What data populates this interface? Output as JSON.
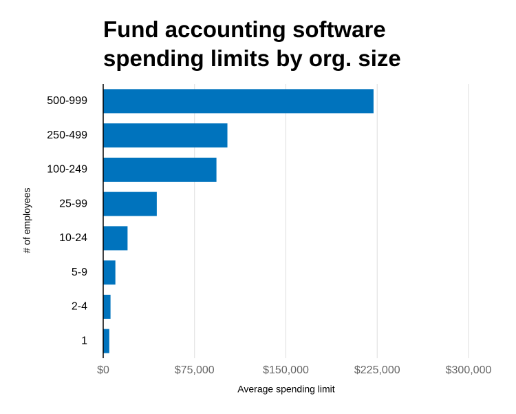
{
  "chart_data": {
    "type": "hbar",
    "title": "Fund accounting software spending limits by org. size",
    "categories": [
      "500-999",
      "250-499",
      "100-249",
      "25-99",
      "10-24",
      "5-9",
      "2-4",
      "1"
    ],
    "values": [
      222000,
      102000,
      93000,
      44000,
      20000,
      10000,
      6000,
      5000
    ],
    "color": "#0073bd",
    "xlim": [
      0,
      300000
    ],
    "xticks": [
      {
        "value": 0,
        "label": "$0"
      },
      {
        "value": 75000,
        "label": "$75,000"
      },
      {
        "value": 150000,
        "label": "$150,000"
      },
      {
        "value": 225000,
        "label": "$225,000"
      },
      {
        "value": 300000,
        "label": "$300,000"
      }
    ],
    "xlabel": "Average spending limit",
    "ylabel": "# of employees",
    "grid": true
  }
}
